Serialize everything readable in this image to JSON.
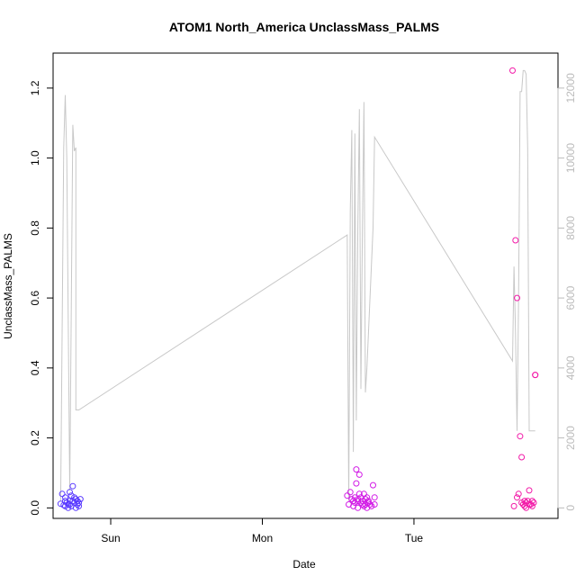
{
  "chart_data": {
    "type": "scatter",
    "title": "ATOM1 North_America UnclassMass_PALMS",
    "xlabel": "Date",
    "ylabel": "UnclassMass_PALMS",
    "x_unit": "days",
    "xlim": [
      -0.38,
      2.95
    ],
    "ylim": [
      -0.03,
      1.3
    ],
    "y_ticks": [
      0.0,
      0.2,
      0.4,
      0.6,
      0.8,
      1.0,
      1.2
    ],
    "x_ticks": [
      {
        "value": 0,
        "label": "Sun"
      },
      {
        "value": 1,
        "label": "Mon"
      },
      {
        "value": 2,
        "label": "Tue"
      }
    ],
    "y2lim": [
      -300,
      13000
    ],
    "y2_ticks": [
      0,
      2000,
      4000,
      6000,
      8000,
      10000,
      12000
    ],
    "grid": false,
    "secondary_line": {
      "color": "#c8c8c8",
      "x": [
        -0.33,
        -0.31,
        -0.3,
        -0.29,
        -0.27,
        -0.25,
        -0.24,
        -0.23,
        -0.23,
        -0.22,
        -0.21,
        1.56,
        1.57,
        1.58,
        1.59,
        1.6,
        1.61,
        1.62,
        1.63,
        1.64,
        1.65,
        1.66,
        1.67,
        1.68,
        1.69,
        1.7,
        1.71,
        1.72,
        1.73,
        1.74,
        2.65,
        2.66,
        2.67,
        2.68,
        2.69,
        2.7,
        2.71,
        2.72,
        2.73,
        2.74,
        2.75,
        2.76,
        2.77,
        2.78,
        2.79,
        2.8
      ],
      "y": [
        200,
        10300,
        11800,
        10000,
        500,
        10950,
        10200,
        10300,
        2800,
        2800,
        2800,
        7800,
        200,
        8500,
        10800,
        1600,
        10700,
        2500,
        8000,
        11400,
        3400,
        8000,
        11600,
        3300,
        4000,
        5000,
        6000,
        7000,
        8000,
        10600,
        4200,
        6900,
        5000,
        2200,
        6000,
        11900,
        11900,
        12500,
        12500,
        12400,
        10300,
        2200,
        2200,
        2200,
        2200,
        2200
      ]
    },
    "series": [
      {
        "color": "#5b3cff",
        "x": [
          -0.33,
          -0.32,
          -0.31,
          -0.3,
          -0.3,
          -0.29,
          -0.28,
          -0.28,
          -0.27,
          -0.27,
          -0.26,
          -0.26,
          -0.25,
          -0.25,
          -0.24,
          -0.24,
          -0.23,
          -0.23,
          -0.22,
          -0.22,
          -0.21,
          -0.21,
          -0.2,
          -0.3,
          -0.27
        ],
        "y": [
          0.012,
          0.04,
          0.008,
          0.02,
          0.005,
          0.015,
          0.01,
          0.0,
          0.02,
          0.045,
          0.035,
          0.005,
          0.02,
          0.062,
          0.03,
          0.015,
          0.0,
          0.025,
          0.01,
          0.02,
          0.005,
          0.015,
          0.025,
          0.03,
          0.01
        ]
      },
      {
        "color": "#d21ce6",
        "x": [
          1.56,
          1.57,
          1.58,
          1.59,
          1.6,
          1.6,
          1.61,
          1.61,
          1.62,
          1.62,
          1.63,
          1.63,
          1.64,
          1.64,
          1.65,
          1.65,
          1.66,
          1.66,
          1.67,
          1.67,
          1.68,
          1.68,
          1.69,
          1.69,
          1.7,
          1.7,
          1.71,
          1.72,
          1.73,
          1.74,
          1.74,
          1.63
        ],
        "y": [
          0.035,
          0.01,
          0.045,
          0.025,
          0.02,
          0.005,
          0.015,
          0.03,
          0.07,
          0.11,
          0.0,
          0.02,
          0.095,
          0.04,
          0.015,
          0.03,
          0.01,
          0.02,
          0.04,
          0.005,
          0.025,
          0.01,
          0.03,
          0.0,
          0.02,
          0.015,
          0.01,
          0.005,
          0.065,
          0.03,
          0.01,
          0.025
        ]
      },
      {
        "color": "#f21aa8",
        "x": [
          2.65,
          2.66,
          2.67,
          2.68,
          2.69,
          2.7,
          2.71,
          2.71,
          2.72,
          2.73,
          2.74,
          2.74,
          2.75,
          2.76,
          2.77,
          2.78,
          2.78,
          2.79,
          2.8,
          2.8,
          2.68,
          2.76,
          2.73
        ],
        "y": [
          1.25,
          0.005,
          0.765,
          0.6,
          0.04,
          0.205,
          0.145,
          0.015,
          0.01,
          0.005,
          0.015,
          0.0,
          0.02,
          0.05,
          0.01,
          0.02,
          0.005,
          0.015,
          0.38,
          0.38,
          0.03,
          0.01,
          0.02
        ]
      }
    ]
  }
}
